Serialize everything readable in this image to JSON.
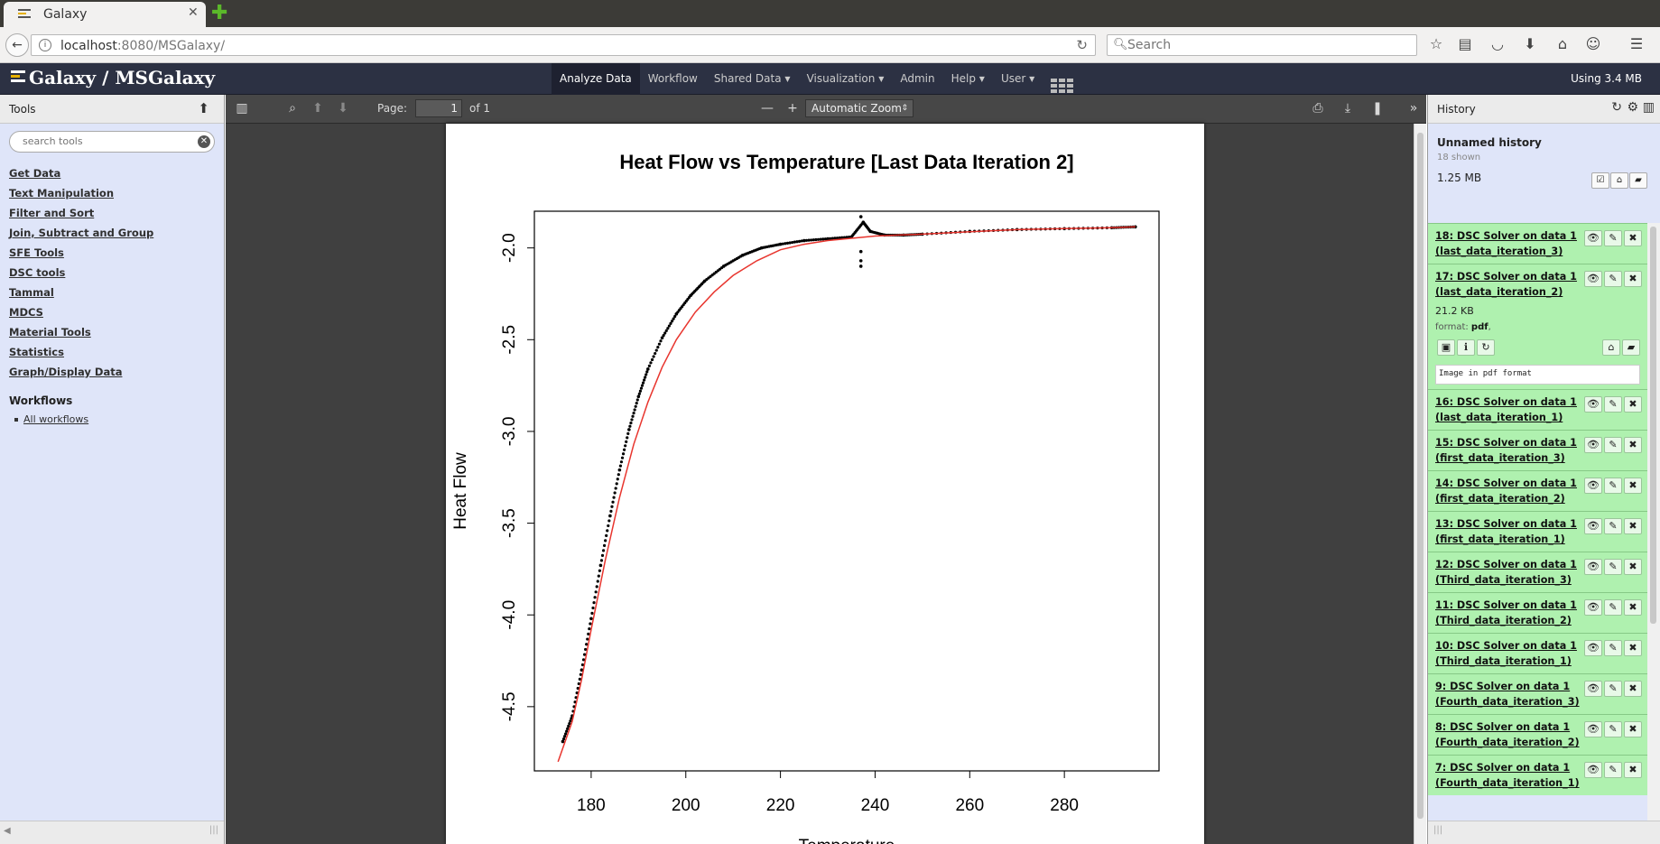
{
  "browser": {
    "tab_title": "Galaxy",
    "url_host": "localhost",
    "url_rest": ":8080/MSGalaxy/",
    "search_placeholder": "Search"
  },
  "masthead": {
    "brand": "Galaxy / MSGalaxy",
    "nav": [
      "Analyze Data",
      "Workflow",
      "Shared Data",
      "Visualization",
      "Admin",
      "Help",
      "User"
    ],
    "usage": "Using 3.4 MB"
  },
  "tools": {
    "title": "Tools",
    "search_placeholder": "search tools",
    "sections": [
      "Get Data",
      "Text Manipulation",
      "Filter and Sort",
      "Join, Subtract and Group",
      "SFE Tools",
      "DSC tools",
      "Tammal",
      "MDCS",
      "Material Tools",
      "Statistics",
      "Graph/Display Data"
    ],
    "workflows_title": "Workflows",
    "all_workflows": "All workflows"
  },
  "pdf_viewer": {
    "page_label": "Page:",
    "page_number": "1",
    "page_of": "of 1",
    "zoom": "Automatic Zoom"
  },
  "chart_data": {
    "type": "scatter",
    "title": "Heat Flow vs Temperature [Last Data Iteration 2]",
    "xlabel": "Temperature",
    "ylabel": "Heat Flow",
    "xlim": [
      168,
      300
    ],
    "ylim": [
      -4.85,
      -1.8
    ],
    "xticks": [
      180,
      200,
      220,
      240,
      260,
      280
    ],
    "yticks": [
      -2.0,
      -2.5,
      -3.0,
      -3.5,
      -4.0,
      -4.5
    ],
    "ytick_labels": [
      "-2.0",
      "-2.5",
      "-3.0",
      "-3.5",
      "-4.0",
      "-4.5"
    ],
    "series": [
      {
        "style": "points",
        "color": "#000000",
        "x": [
          174,
          176,
          178,
          180,
          182,
          184,
          186,
          188,
          190,
          192,
          195,
          198,
          201,
          204,
          208,
          212,
          216,
          220,
          225,
          230,
          235,
          237.5,
          239,
          242,
          246,
          250,
          260,
          270,
          280,
          290,
          295
        ],
        "y": [
          -4.69,
          -4.55,
          -4.3,
          -4.02,
          -3.73,
          -3.46,
          -3.21,
          -2.99,
          -2.81,
          -2.66,
          -2.49,
          -2.36,
          -2.26,
          -2.18,
          -2.1,
          -2.04,
          -2.0,
          -1.98,
          -1.96,
          -1.95,
          -1.94,
          -1.86,
          -1.91,
          -1.93,
          -1.93,
          -1.925,
          -1.91,
          -1.9,
          -1.895,
          -1.89,
          -1.885
        ]
      },
      {
        "style": "points",
        "color": "#000000",
        "x": [
          237,
          237,
          237,
          237
        ],
        "y": [
          -1.83,
          -2.02,
          -2.07,
          -2.1
        ]
      },
      {
        "style": "line",
        "color": "#e8352e",
        "x": [
          173,
          176,
          178,
          180,
          183,
          186,
          189,
          192,
          195,
          198,
          202,
          206,
          210,
          215,
          220,
          225,
          230,
          236,
          240,
          245,
          250,
          260,
          270,
          280,
          290,
          295
        ],
        "y": [
          -4.8,
          -4.58,
          -4.35,
          -4.08,
          -3.7,
          -3.36,
          -3.07,
          -2.84,
          -2.65,
          -2.5,
          -2.35,
          -2.24,
          -2.15,
          -2.07,
          -2.01,
          -1.98,
          -1.96,
          -1.945,
          -1.935,
          -1.93,
          -1.925,
          -1.912,
          -1.9,
          -1.895,
          -1.89,
          -1.885
        ]
      }
    ]
  },
  "history": {
    "title": "History",
    "name": "Unnamed history",
    "shown": "18 shown",
    "size": "1.25 MB",
    "datasets": [
      {
        "title": "18: DSC Solver on data 1 (last_data_iteration_3)"
      },
      {
        "title": "17: DSC Solver on data 1 (last_data_iteration_2)",
        "expanded": true,
        "size": "21.2 KB",
        "format_label": "format:",
        "format_value": "pdf",
        "peek": "Image in pdf format"
      },
      {
        "title": "16: DSC Solver on data 1 (last_data_iteration_1)"
      },
      {
        "title": "15: DSC Solver on data 1 (first_data_iteration_3)"
      },
      {
        "title": "14: DSC Solver on data 1 (first_data_iteration_2)"
      },
      {
        "title": "13: DSC Solver on data 1 (first_data_iteration_1)"
      },
      {
        "title": "12: DSC Solver on data 1 (Third_data_iteration_3)"
      },
      {
        "title": "11: DSC Solver on data 1 (Third_data_iteration_2)"
      },
      {
        "title": "10: DSC Solver on data 1 (Third_data_iteration_1)"
      },
      {
        "title": "9: DSC Solver on data 1 (Fourth_data_iteration_3)"
      },
      {
        "title": "8: DSC Solver on data 1 (Fourth_data_iteration_2)"
      },
      {
        "title": "7: DSC Solver on data 1 (Fourth_data_iteration_1)"
      }
    ]
  }
}
